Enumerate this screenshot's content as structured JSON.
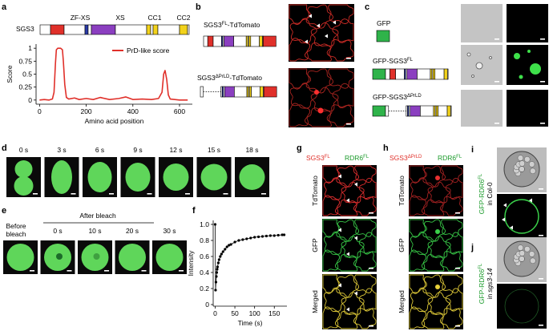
{
  "panel_letters": [
    "a",
    "b",
    "c",
    "d",
    "e",
    "f",
    "g",
    "h",
    "i",
    "j"
  ],
  "a": {
    "protein": "SGS3",
    "domains": [
      "ZF-XS",
      "XS",
      "CC1",
      "CC2"
    ]
  },
  "b": {
    "constructs": [
      {
        "name": "SGS3",
        "sup": "FL",
        "suffix": "-TdTomato"
      },
      {
        "name": "SGS3",
        "sup": "ΔPrLD",
        "suffix": "-TdTomato"
      }
    ]
  },
  "c": {
    "constructs": [
      {
        "name": "GFP"
      },
      {
        "name": "GFP-SGS3",
        "sup": "FL"
      },
      {
        "name": "GFP-SGS3",
        "sup": "ΔPrLD"
      }
    ]
  },
  "d": {
    "times": [
      "0 s",
      "3 s",
      "6 s",
      "9 s",
      "12 s",
      "15 s",
      "18 s"
    ]
  },
  "e": {
    "before": [
      "Before",
      "bleach"
    ],
    "after": "After bleach",
    "times": [
      "0 s",
      "10 s",
      "20 s",
      "30 s"
    ]
  },
  "g": {
    "header": [
      {
        "name": "SGS3",
        "sup": "FL"
      },
      {
        "name": "RDR6",
        "sup": "FL"
      }
    ],
    "rows": [
      "TdTomato",
      "GFP",
      "Merged"
    ]
  },
  "h": {
    "header": [
      {
        "name": "SGS3",
        "sup": "ΔPrLD"
      },
      {
        "name": "RDR6",
        "sup": "FL"
      }
    ],
    "rows": [
      "TdTomato",
      "GFP",
      "Merged"
    ]
  },
  "i": {
    "name": "GFP-RDR6",
    "sup": "FL",
    "line2": "in Col-0"
  },
  "j": {
    "name": "GFP-RDR6",
    "sup": "FL",
    "line2_prefix": "in",
    "line2_italic": "sgs3-14"
  },
  "chart_data": [
    {
      "type": "line",
      "xlabel": "Amino acid position",
      "ylabel": "Score",
      "x": [
        0,
        20,
        40,
        55,
        62,
        68,
        72,
        78,
        90,
        98,
        102,
        108,
        115,
        125,
        150,
        170,
        200,
        230,
        260,
        300,
        340,
        370,
        400,
        440,
        480,
        510,
        525,
        532,
        538,
        545,
        552,
        560,
        600,
        635
      ],
      "series": [
        {
          "name": "PrD-like score",
          "color": "#e0302a",
          "values": [
            0,
            0.01,
            0,
            0.02,
            0.15,
            0.7,
            0.97,
            1.0,
            1.0,
            0.97,
            0.75,
            0.3,
            0.05,
            0.02,
            0.04,
            0.01,
            0.03,
            0.01,
            0.05,
            0.01,
            0.03,
            0.06,
            0.01,
            0.02,
            0.01,
            0.03,
            0.15,
            0.5,
            0.57,
            0.4,
            0.1,
            0.02,
            0,
            0
          ]
        }
      ],
      "xlim": [
        -15,
        655
      ],
      "ylim": [
        -0.08,
        1.08
      ],
      "xticks": [
        0,
        200,
        400,
        600
      ],
      "yticks": [
        0,
        0.25,
        0.5,
        0.75,
        1
      ],
      "legend": "upper right"
    },
    {
      "type": "line",
      "markers": true,
      "xlabel": "Time (s)",
      "ylabel": "Intensity",
      "x": [
        0,
        1,
        2,
        3,
        4,
        5,
        6,
        8,
        10,
        13,
        16,
        20,
        25,
        30,
        35,
        40,
        50,
        60,
        70,
        80,
        90,
        100,
        110,
        120,
        130,
        140,
        150,
        160,
        170,
        175
      ],
      "series": [
        {
          "name": "Intensity",
          "color": "#000000",
          "values": [
            1.0,
            0.18,
            0.28,
            0.35,
            0.4,
            0.44,
            0.47,
            0.52,
            0.56,
            0.6,
            0.63,
            0.66,
            0.69,
            0.72,
            0.74,
            0.75,
            0.78,
            0.8,
            0.81,
            0.82,
            0.83,
            0.84,
            0.845,
            0.85,
            0.855,
            0.86,
            0.86,
            0.865,
            0.87,
            0.87
          ]
        }
      ],
      "xlim": [
        -5,
        182
      ],
      "ylim": [
        -0.02,
        1.05
      ],
      "xticks": [
        0,
        50,
        100,
        150
      ],
      "yticks": [
        0,
        0.2,
        0.4,
        0.6,
        0.8,
        {
          "value": 1,
          "label": "1.0"
        }
      ]
    }
  ]
}
